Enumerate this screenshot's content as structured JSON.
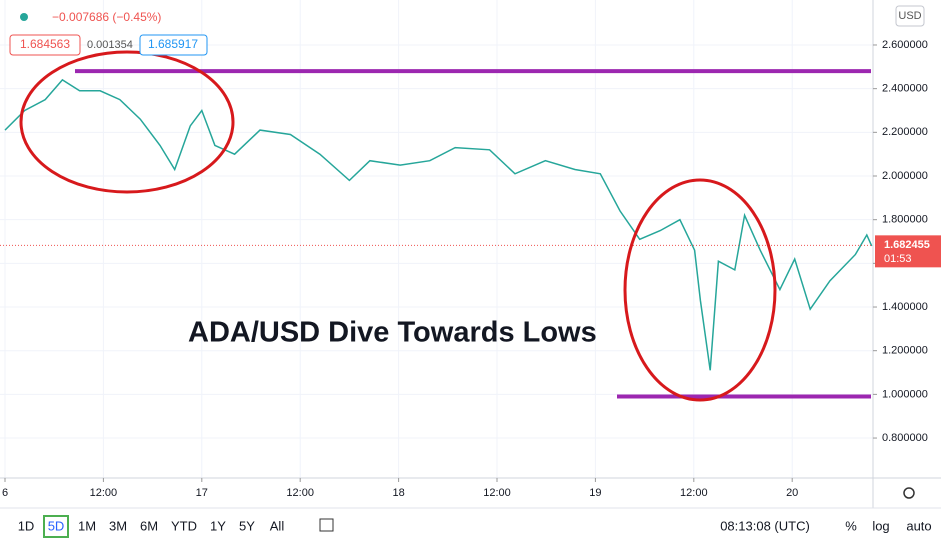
{
  "header": {
    "change": "−0.007686 (−0.45%)",
    "bid": "1.684563",
    "spread": "0.001354",
    "ask": "1.685917",
    "currency": "USD"
  },
  "chart_data": {
    "type": "line",
    "title": "ADA/USD Dive Towards Lows",
    "series": [
      {
        "name": "ADA/USD",
        "color": "#26a69a",
        "x": [
          0,
          2.4,
          4.9,
          7,
          9.1,
          11.6,
          14,
          16.5,
          18.9,
          20.7,
          22.6,
          24,
          25.6,
          28,
          31.1,
          34.8,
          38.4,
          42,
          44.5,
          48.2,
          51.8,
          54.9,
          59.1,
          62.2,
          65.9,
          69.5,
          72.6,
          75,
          77.4,
          79.9,
          82.3,
          84.1,
          84.8,
          86,
          87,
          89,
          90.2,
          92.1,
          94.5,
          96.3,
          98.2,
          100.6,
          103.7,
          105.1,
          105.7
        ],
        "values": [
          2.21,
          2.3,
          2.35,
          2.44,
          2.39,
          2.39,
          2.35,
          2.26,
          2.14,
          2.03,
          2.23,
          2.3,
          2.14,
          2.1,
          2.21,
          2.19,
          2.1,
          1.98,
          2.07,
          2.05,
          2.07,
          2.13,
          2.12,
          2.01,
          2.07,
          2.03,
          2.01,
          1.84,
          1.71,
          1.75,
          1.8,
          1.66,
          1.43,
          1.11,
          1.61,
          1.57,
          1.82,
          1.66,
          1.48,
          1.62,
          1.39,
          1.52,
          1.64,
          1.73,
          1.68
        ]
      }
    ],
    "hlines": [
      {
        "value": 2.48,
        "color": "#9c27b0"
      },
      {
        "value": 0.99,
        "color": "#9c27b0"
      }
    ],
    "last_price": 1.682455,
    "countdown": "01:53",
    "xlim": [
      0,
      106
    ],
    "xticks": [
      {
        "value": 0,
        "label": "6"
      },
      {
        "value": 12,
        "label": "12:00"
      },
      {
        "value": 24,
        "label": "17"
      },
      {
        "value": 36,
        "label": "12:00"
      },
      {
        "value": 48,
        "label": "18"
      },
      {
        "value": 60,
        "label": "12:00"
      },
      {
        "value": 72,
        "label": "19"
      },
      {
        "value": 84,
        "label": "12:00"
      },
      {
        "value": 96,
        "label": "20"
      }
    ],
    "ylim": [
      0.617,
      2.806
    ],
    "yticks": [
      {
        "value": 0.8,
        "label": "0.800000"
      },
      {
        "value": 1.0,
        "label": "1.000000"
      },
      {
        "value": 1.2,
        "label": "1.200000"
      },
      {
        "value": 1.4,
        "label": "1.400000"
      },
      {
        "value": 1.6,
        "label": "1.600000"
      },
      {
        "value": 1.8,
        "label": "1.800000"
      },
      {
        "value": 2.0,
        "label": "2.000000"
      },
      {
        "value": 2.2,
        "label": "2.200000"
      },
      {
        "value": 2.4,
        "label": "2.400000"
      },
      {
        "value": 2.6,
        "label": "2.600000"
      }
    ],
    "grid": true
  },
  "toolbar": {
    "ranges": [
      "1D",
      "5D",
      "1M",
      "3M",
      "6M",
      "YTD",
      "1Y",
      "5Y",
      "All"
    ],
    "selected": "5D",
    "time": "08:13:08 (UTC)",
    "percent": "%",
    "log": "log",
    "auto": "auto"
  }
}
